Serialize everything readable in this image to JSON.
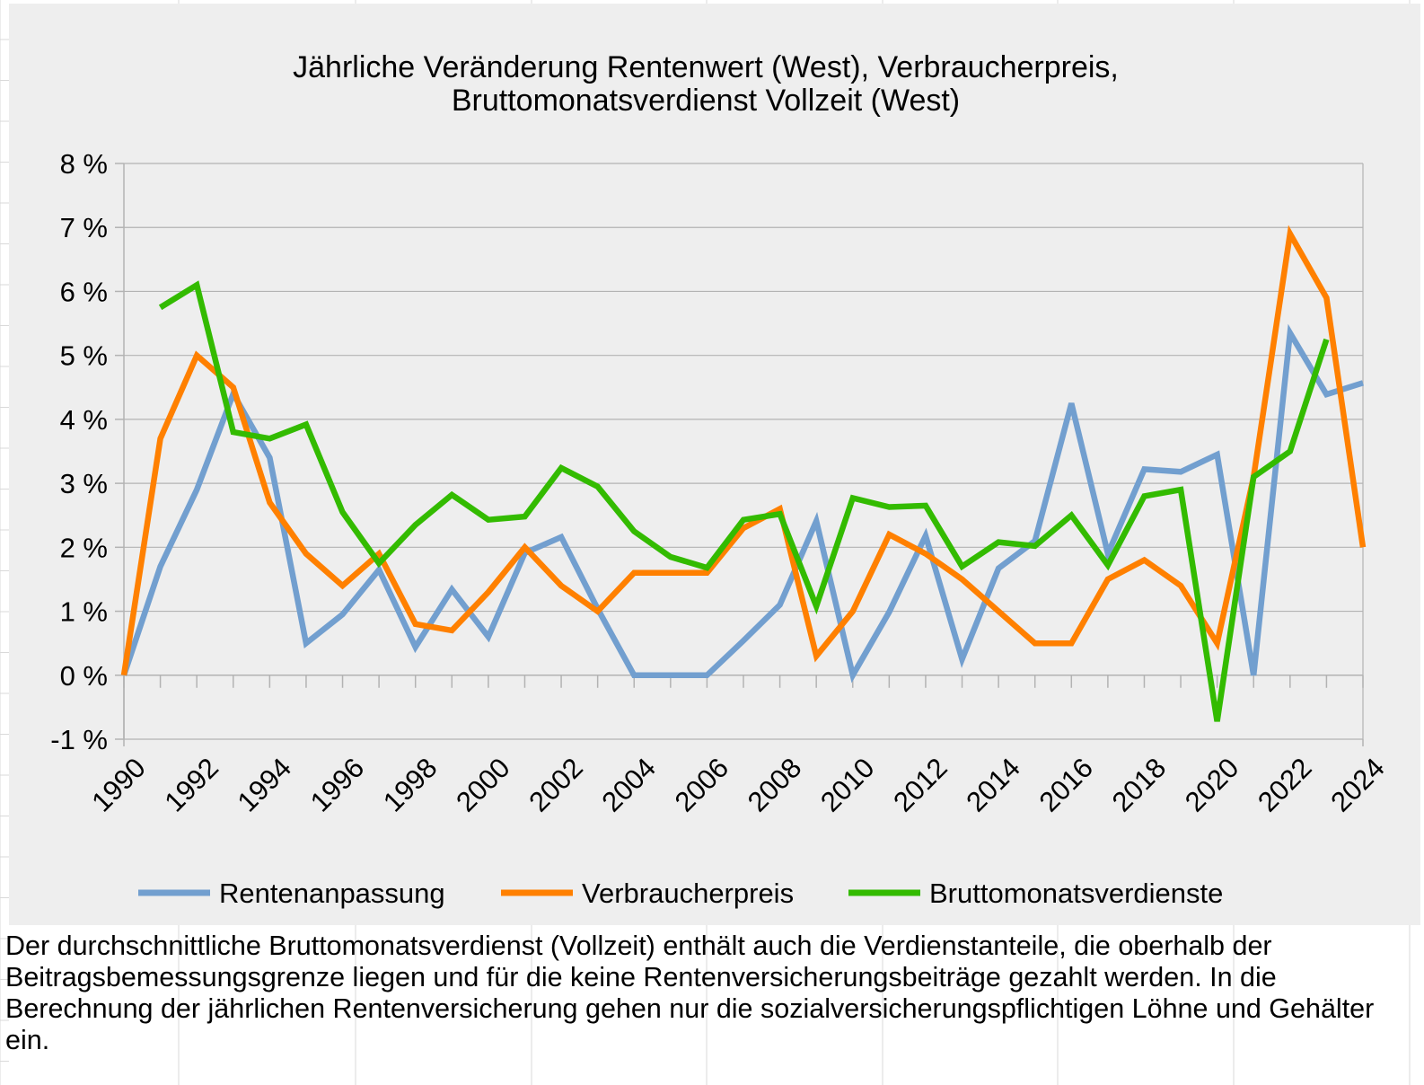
{
  "chart_data": {
    "type": "line",
    "title_lines": [
      "Jährliche Veränderung Rentenwert (West), Verbraucherpreis,",
      "Bruttomonatsverdienst Vollzeit (West)"
    ],
    "x": [
      1990,
      1991,
      1992,
      1993,
      1994,
      1995,
      1996,
      1997,
      1998,
      1999,
      2000,
      2001,
      2002,
      2003,
      2004,
      2005,
      2006,
      2007,
      2008,
      2009,
      2010,
      2011,
      2012,
      2013,
      2014,
      2015,
      2016,
      2017,
      2018,
      2019,
      2020,
      2021,
      2022,
      2023,
      2024
    ],
    "x_tick_labels": [
      "1990",
      "1992",
      "1994",
      "1996",
      "1998",
      "2000",
      "2002",
      "2004",
      "2006",
      "2008",
      "2010",
      "2012",
      "2014",
      "2016",
      "2018",
      "2020",
      "2022",
      "2024"
    ],
    "y_tick_labels": [
      "8 %",
      "7 %",
      "6 %",
      "5 %",
      "4 %",
      "3 %",
      "2 %",
      "1 %",
      "0 %",
      "-1 %"
    ],
    "ylim": [
      -1,
      8
    ],
    "y_unit": "%",
    "grid": "horizontal",
    "legend_position": "bottom",
    "series": [
      {
        "name": "Rentenanpassung",
        "color": "#729fcf",
        "values": [
          0,
          1.7,
          2.9,
          4.4,
          3.4,
          0.5,
          0.95,
          1.65,
          0.44,
          1.34,
          0.6,
          1.91,
          2.16,
          1.04,
          0,
          0,
          0,
          0.54,
          1.1,
          2.41,
          0,
          0.99,
          2.18,
          0.25,
          1.67,
          2.1,
          4.25,
          1.9,
          3.22,
          3.18,
          3.45,
          0,
          5.35,
          4.39,
          4.57
        ]
      },
      {
        "name": "Verbraucherpreis",
        "color": "#ff8000",
        "values": [
          0,
          3.7,
          5.0,
          4.5,
          2.7,
          1.9,
          1.4,
          1.9,
          0.8,
          0.7,
          1.3,
          2.0,
          1.4,
          1.0,
          1.6,
          1.6,
          1.6,
          2.3,
          2.6,
          0.3,
          1.0,
          2.2,
          1.9,
          1.5,
          1.0,
          0.5,
          0.5,
          1.5,
          1.8,
          1.4,
          0.5,
          3.1,
          6.9,
          5.9,
          2.0
        ]
      },
      {
        "name": "Bruttomonatsverdienste",
        "color": "#33bb00",
        "values": [
          null,
          5.75,
          6.1,
          3.8,
          3.7,
          3.92,
          2.55,
          1.75,
          2.35,
          2.82,
          2.43,
          2.48,
          3.24,
          2.95,
          2.25,
          1.85,
          1.68,
          2.43,
          2.52,
          1.08,
          2.77,
          2.63,
          2.65,
          1.7,
          2.08,
          2.02,
          2.5,
          1.72,
          2.8,
          2.9,
          -0.72,
          3.1,
          3.5,
          5.25,
          null
        ]
      }
    ]
  },
  "footnote": "Der durchschnittliche Bruttomonatsverdienst (Vollzeit) enthält auch die Verdienstanteile, die oberhalb der Beitragsbemessungsgrenze liegen und für die keine Rentenversicherungsbeiträge gezahlt werden. In die Berechnung der jährlichen Rentenversicherung gehen nur die sozialversicherungspflichtigen Löhne und Gehälter ein."
}
